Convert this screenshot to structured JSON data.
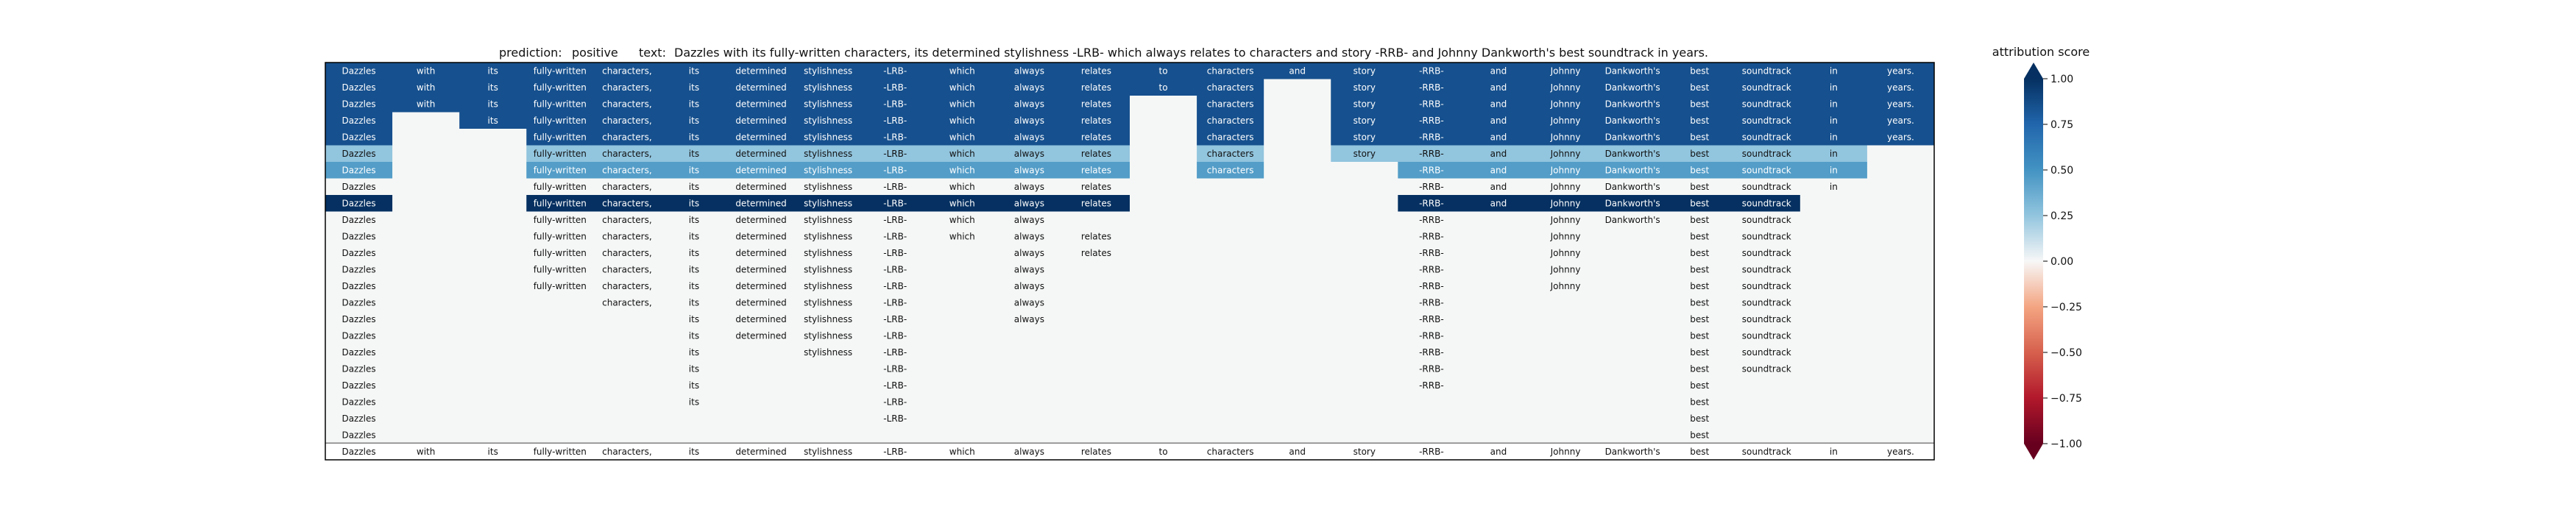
{
  "chart_data": {
    "type": "heatmap",
    "title_prediction_label": "prediction:",
    "title_prediction_value": "positive",
    "title_text_label": "text:",
    "title_text_value": "Dazzles with its fully-written characters, its determined stylishness -LRB- which always relates to characters and story -RRB- and Johnny Dankworth's best soundtrack in years.",
    "columns": [
      "Dazzles",
      "with",
      "its",
      "fully-written",
      "characters,",
      "its",
      "determined",
      "stylishness",
      "-LRB-",
      "which",
      "always",
      "relates",
      "to",
      "characters",
      "and",
      "story",
      "-RRB-",
      "and",
      "Johnny",
      "Dankworth's",
      "best",
      "soundtrack",
      "in",
      "years."
    ],
    "rows": [
      {
        "tokens": [
          1,
          1,
          1,
          1,
          1,
          1,
          1,
          1,
          1,
          1,
          1,
          1,
          1,
          1,
          1,
          1,
          1,
          1,
          1,
          1,
          1,
          1,
          1,
          1
        ],
        "scores": [
          0.85,
          0.85,
          0.85,
          0.85,
          0.85,
          0.85,
          0.85,
          0.85,
          0.85,
          0.85,
          0.85,
          0.85,
          0.85,
          0.85,
          0.85,
          0.85,
          0.85,
          0.85,
          0.85,
          0.85,
          0.85,
          0.85,
          0.85,
          0.85
        ]
      },
      {
        "tokens": [
          1,
          1,
          1,
          1,
          1,
          1,
          1,
          1,
          1,
          1,
          1,
          1,
          1,
          1,
          0,
          1,
          1,
          1,
          1,
          1,
          1,
          1,
          1,
          1
        ],
        "scores": [
          0.85,
          0.85,
          0.85,
          0.85,
          0.85,
          0.85,
          0.85,
          0.85,
          0.85,
          0.85,
          0.85,
          0.85,
          0.85,
          0.85,
          0,
          0.85,
          0.85,
          0.85,
          0.85,
          0.85,
          0.85,
          0.85,
          0.85,
          0.85
        ]
      },
      {
        "tokens": [
          1,
          1,
          1,
          1,
          1,
          1,
          1,
          1,
          1,
          1,
          1,
          1,
          0,
          1,
          0,
          1,
          1,
          1,
          1,
          1,
          1,
          1,
          1,
          1
        ],
        "scores": [
          0.85,
          0.85,
          0.85,
          0.85,
          0.85,
          0.85,
          0.85,
          0.85,
          0.85,
          0.85,
          0.85,
          0.85,
          0,
          0.85,
          0,
          0.85,
          0.85,
          0.85,
          0.85,
          0.85,
          0.85,
          0.85,
          0.85,
          0.85
        ]
      },
      {
        "tokens": [
          1,
          0,
          1,
          1,
          1,
          1,
          1,
          1,
          1,
          1,
          1,
          1,
          0,
          1,
          0,
          1,
          1,
          1,
          1,
          1,
          1,
          1,
          1,
          1
        ],
        "scores": [
          0.85,
          0,
          0.85,
          0.85,
          0.85,
          0.85,
          0.85,
          0.85,
          0.85,
          0.85,
          0.85,
          0.85,
          0,
          0.85,
          0,
          0.85,
          0.85,
          0.85,
          0.85,
          0.85,
          0.85,
          0.85,
          0.85,
          0.85
        ]
      },
      {
        "tokens": [
          1,
          0,
          0,
          1,
          1,
          1,
          1,
          1,
          1,
          1,
          1,
          1,
          0,
          1,
          0,
          1,
          1,
          1,
          1,
          1,
          1,
          1,
          1,
          1
        ],
        "scores": [
          0.85,
          0,
          0,
          0.85,
          0.85,
          0.85,
          0.85,
          0.85,
          0.85,
          0.85,
          0.85,
          0.85,
          0,
          0.85,
          0,
          0.85,
          0.85,
          0.85,
          0.85,
          0.85,
          0.85,
          0.85,
          0.85,
          0.85
        ]
      },
      {
        "tokens": [
          1,
          0,
          0,
          1,
          1,
          1,
          1,
          1,
          1,
          1,
          1,
          1,
          0,
          1,
          0,
          1,
          1,
          1,
          1,
          1,
          1,
          1,
          1,
          0
        ],
        "scores": [
          0.25,
          0,
          0,
          0.25,
          0.25,
          0.25,
          0.25,
          0.25,
          0.25,
          0.25,
          0.25,
          0.25,
          0,
          0.25,
          0,
          0.25,
          0.25,
          0.25,
          0.25,
          0.25,
          0.25,
          0.25,
          0.25,
          0
        ]
      },
      {
        "tokens": [
          1,
          0,
          0,
          1,
          1,
          1,
          1,
          1,
          1,
          1,
          1,
          1,
          0,
          1,
          0,
          0,
          1,
          1,
          1,
          1,
          1,
          1,
          1,
          0
        ],
        "scores": [
          0.45,
          0,
          0,
          0.45,
          0.45,
          0.45,
          0.45,
          0.45,
          0.45,
          0.45,
          0.45,
          0.45,
          0,
          0.45,
          0,
          0,
          0.45,
          0.45,
          0.45,
          0.45,
          0.45,
          0.45,
          0.45,
          0
        ]
      },
      {
        "tokens": [
          1,
          0,
          0,
          1,
          1,
          1,
          1,
          1,
          1,
          1,
          1,
          1,
          0,
          0,
          0,
          0,
          1,
          1,
          1,
          1,
          1,
          1,
          1,
          0
        ],
        "scores": [
          0.02,
          0,
          0,
          0.02,
          0.02,
          0.02,
          0.02,
          0.02,
          0.02,
          0.02,
          0.02,
          0.02,
          0,
          0,
          0,
          0,
          0.02,
          0.02,
          0.02,
          0.02,
          0.02,
          0.02,
          0.02,
          0
        ]
      },
      {
        "tokens": [
          1,
          0,
          0,
          1,
          1,
          1,
          1,
          1,
          1,
          1,
          1,
          1,
          0,
          0,
          0,
          0,
          1,
          1,
          1,
          1,
          1,
          1,
          0,
          0
        ],
        "scores": [
          1.0,
          0,
          0,
          1.0,
          1.0,
          1.0,
          1.0,
          1.0,
          1.0,
          1.0,
          1.0,
          1.0,
          0,
          0,
          0,
          0,
          1.0,
          1.0,
          1.0,
          1.0,
          1.0,
          1.0,
          0,
          0
        ]
      },
      {
        "tokens": [
          1,
          0,
          0,
          1,
          1,
          1,
          1,
          1,
          1,
          1,
          1,
          0,
          0,
          0,
          0,
          0,
          1,
          0,
          1,
          1,
          1,
          1,
          0,
          0
        ],
        "scores": [
          0.02,
          0,
          0,
          0.02,
          0.02,
          0.02,
          0.02,
          0.02,
          0.02,
          0.02,
          0.02,
          0,
          0,
          0,
          0,
          0,
          0.02,
          0,
          0.02,
          0.02,
          0.02,
          0.02,
          0,
          0
        ]
      },
      {
        "tokens": [
          1,
          0,
          0,
          1,
          1,
          1,
          1,
          1,
          1,
          1,
          1,
          1,
          0,
          0,
          0,
          0,
          1,
          0,
          1,
          0,
          1,
          1,
          0,
          0
        ],
        "scores": [
          0.02,
          0,
          0,
          0.02,
          0.02,
          0.02,
          0.02,
          0.02,
          0.02,
          0.02,
          0.02,
          0.02,
          0,
          0,
          0,
          0,
          0.02,
          0,
          0.02,
          0,
          0.02,
          0.02,
          0,
          0
        ]
      },
      {
        "tokens": [
          1,
          0,
          0,
          1,
          1,
          1,
          1,
          1,
          1,
          0,
          1,
          1,
          0,
          0,
          0,
          0,
          1,
          0,
          1,
          0,
          1,
          1,
          0,
          0
        ],
        "scores": [
          0.02,
          0,
          0,
          0.02,
          0.02,
          0.02,
          0.02,
          0.02,
          0.02,
          0,
          0.02,
          0.02,
          0,
          0,
          0,
          0,
          0.02,
          0,
          0.02,
          0,
          0.02,
          0.02,
          0,
          0
        ]
      },
      {
        "tokens": [
          1,
          0,
          0,
          1,
          1,
          1,
          1,
          1,
          1,
          0,
          1,
          0,
          0,
          0,
          0,
          0,
          1,
          0,
          1,
          0,
          1,
          1,
          0,
          0
        ],
        "scores": [
          0.02,
          0,
          0,
          0.02,
          0.02,
          0.02,
          0.02,
          0.02,
          0.02,
          0,
          0.02,
          0,
          0,
          0,
          0,
          0,
          0.02,
          0,
          0.02,
          0,
          0.02,
          0.02,
          0,
          0
        ]
      },
      {
        "tokens": [
          1,
          0,
          0,
          1,
          1,
          1,
          1,
          1,
          1,
          0,
          1,
          0,
          0,
          0,
          0,
          0,
          1,
          0,
          1,
          0,
          1,
          1,
          0,
          0
        ],
        "scores": [
          0.02,
          0,
          0,
          0.02,
          0.02,
          0.02,
          0.02,
          0.02,
          0.02,
          0,
          0.02,
          0,
          0,
          0,
          0,
          0,
          0.02,
          0,
          0.02,
          0,
          0.02,
          0.02,
          0,
          0
        ]
      },
      {
        "tokens": [
          1,
          0,
          0,
          0,
          1,
          1,
          1,
          1,
          1,
          0,
          1,
          0,
          0,
          0,
          0,
          0,
          1,
          0,
          0,
          0,
          1,
          1,
          0,
          0
        ],
        "scores": [
          0.02,
          0,
          0,
          0,
          0.02,
          0.02,
          0.02,
          0.02,
          0.02,
          0,
          0.02,
          0,
          0,
          0,
          0,
          0,
          0.02,
          0,
          0,
          0,
          0.02,
          0.02,
          0,
          0
        ]
      },
      {
        "tokens": [
          1,
          0,
          0,
          0,
          0,
          1,
          1,
          1,
          1,
          0,
          1,
          0,
          0,
          0,
          0,
          0,
          1,
          0,
          0,
          0,
          1,
          1,
          0,
          0
        ],
        "scores": [
          0.02,
          0,
          0,
          0,
          0,
          0.02,
          0.02,
          0.02,
          0.02,
          0,
          0.02,
          0,
          0,
          0,
          0,
          0,
          0.02,
          0,
          0,
          0,
          0.02,
          0.02,
          0,
          0
        ]
      },
      {
        "tokens": [
          1,
          0,
          0,
          0,
          0,
          1,
          1,
          1,
          1,
          0,
          0,
          0,
          0,
          0,
          0,
          0,
          1,
          0,
          0,
          0,
          1,
          1,
          0,
          0
        ],
        "scores": [
          0.02,
          0,
          0,
          0,
          0,
          0.02,
          0.02,
          0.02,
          0.02,
          0,
          0,
          0,
          0,
          0,
          0,
          0,
          0.02,
          0,
          0,
          0,
          0.02,
          0.02,
          0,
          0
        ]
      },
      {
        "tokens": [
          1,
          0,
          0,
          0,
          0,
          1,
          0,
          1,
          1,
          0,
          0,
          0,
          0,
          0,
          0,
          0,
          1,
          0,
          0,
          0,
          1,
          1,
          0,
          0
        ],
        "scores": [
          0.02,
          0,
          0,
          0,
          0,
          0.02,
          0,
          0.02,
          0.02,
          0,
          0,
          0,
          0,
          0,
          0,
          0,
          0.02,
          0,
          0,
          0,
          0.02,
          0.02,
          0,
          0
        ]
      },
      {
        "tokens": [
          1,
          0,
          0,
          0,
          0,
          1,
          0,
          0,
          1,
          0,
          0,
          0,
          0,
          0,
          0,
          0,
          1,
          0,
          0,
          0,
          1,
          1,
          0,
          0
        ],
        "scores": [
          0.02,
          0,
          0,
          0,
          0,
          0.02,
          0,
          0,
          0.02,
          0,
          0,
          0,
          0,
          0,
          0,
          0,
          0.02,
          0,
          0,
          0,
          0.02,
          0.02,
          0,
          0
        ]
      },
      {
        "tokens": [
          1,
          0,
          0,
          0,
          0,
          1,
          0,
          0,
          1,
          0,
          0,
          0,
          0,
          0,
          0,
          0,
          1,
          0,
          0,
          0,
          1,
          0,
          0,
          0
        ],
        "scores": [
          0.02,
          0,
          0,
          0,
          0,
          0.02,
          0,
          0,
          0.02,
          0,
          0,
          0,
          0,
          0,
          0,
          0,
          0.02,
          0,
          0,
          0,
          0.02,
          0,
          0,
          0
        ]
      },
      {
        "tokens": [
          1,
          0,
          0,
          0,
          0,
          1,
          0,
          0,
          1,
          0,
          0,
          0,
          0,
          0,
          0,
          0,
          0,
          0,
          0,
          0,
          1,
          0,
          0,
          0
        ],
        "scores": [
          0.02,
          0,
          0,
          0,
          0,
          0.02,
          0,
          0,
          0.02,
          0,
          0,
          0,
          0,
          0,
          0,
          0,
          0,
          0,
          0,
          0,
          0.02,
          0,
          0,
          0
        ]
      },
      {
        "tokens": [
          1,
          0,
          0,
          0,
          0,
          0,
          0,
          0,
          1,
          0,
          0,
          0,
          0,
          0,
          0,
          0,
          0,
          0,
          0,
          0,
          1,
          0,
          0,
          0
        ],
        "scores": [
          0.02,
          0,
          0,
          0,
          0,
          0,
          0,
          0,
          0.02,
          0,
          0,
          0,
          0,
          0,
          0,
          0,
          0,
          0,
          0,
          0,
          0.02,
          0,
          0,
          0
        ]
      },
      {
        "tokens": [
          1,
          0,
          0,
          0,
          0,
          0,
          0,
          0,
          0,
          0,
          0,
          0,
          0,
          0,
          0,
          0,
          0,
          0,
          0,
          0,
          1,
          0,
          0,
          0
        ],
        "scores": [
          0.02,
          0,
          0,
          0,
          0,
          0,
          0,
          0,
          0,
          0,
          0,
          0,
          0,
          0,
          0,
          0,
          0,
          0,
          0,
          0,
          0.02,
          0,
          0,
          0
        ]
      }
    ],
    "colorbar": {
      "label": "attribution score",
      "range": [
        -1.0,
        1.0
      ],
      "ticks": [
        "1.00",
        "0.75",
        "0.50",
        "0.25",
        "0.00",
        "−0.25",
        "−0.50",
        "−0.75",
        "−1.00"
      ],
      "tick_values": [
        1.0,
        0.75,
        0.5,
        0.25,
        0.0,
        -0.25,
        -0.5,
        -0.75,
        -1.0
      ],
      "colormap": "RdBu"
    }
  }
}
